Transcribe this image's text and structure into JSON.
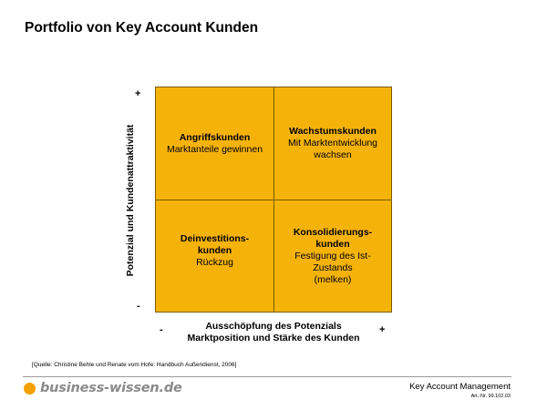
{
  "title": "Portfolio von Key Account Kunden",
  "y_axis": {
    "label": "Potenzial und Kundenattraktivität",
    "top": "+",
    "bottom": "-"
  },
  "x_axis": {
    "line1": "Ausschöpfung des Potenzials",
    "line2": "Marktposition und Stärke des Kunden",
    "left": "-",
    "right": "+"
  },
  "quadrants": {
    "top_left": {
      "title": "Angriffskunden",
      "lines": [
        "Marktanteile gewinnen"
      ]
    },
    "top_right": {
      "title": "Wachstumskunden",
      "lines": [
        "Mit Marktentwicklung",
        "wachsen"
      ]
    },
    "bottom_left": {
      "title_lines": [
        "Deinvestitions-",
        "kunden"
      ],
      "lines": [
        "Rückzug"
      ]
    },
    "bottom_right": {
      "title_lines": [
        "Konsolidierungs-",
        "kunden"
      ],
      "lines": [
        "Festigung des Ist-",
        "Zustands",
        "(melken)"
      ]
    }
  },
  "source": "[Quelle: Christine Behle und Renate vom Hofe: Handbuch Außendienst, 2006]",
  "footer": {
    "logo_text": "business-wissen.de",
    "brand": "Key Account Management",
    "article_number": "Art.-Nr. 99.102.03"
  },
  "colors": {
    "quadrant_fill": "#f5b30a",
    "logo_dot": "#f5a100",
    "logo_text": "#8a8a8a"
  }
}
